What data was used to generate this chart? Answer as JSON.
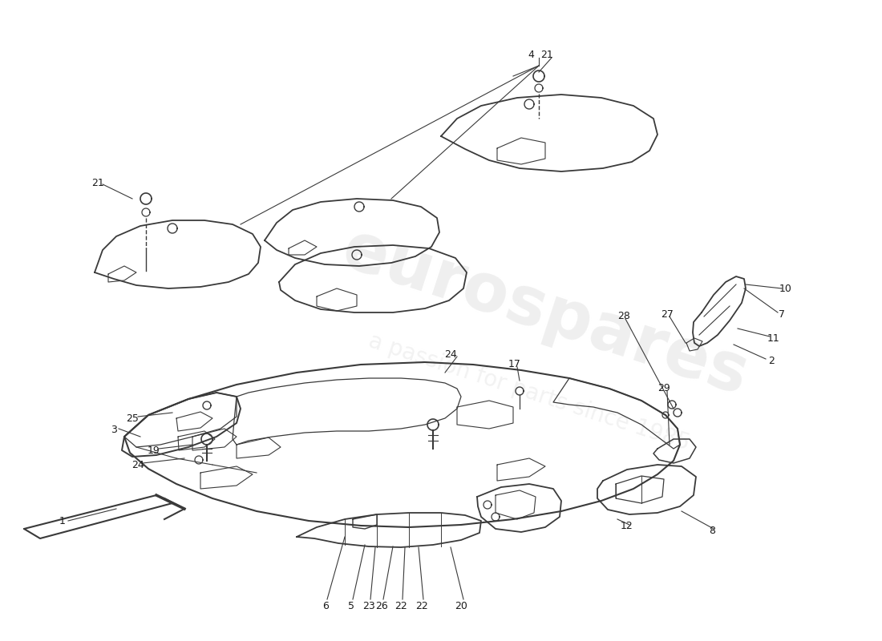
{
  "bg_color": "#ffffff",
  "line_color": "#3a3a3a",
  "text_color": "#1a1a1a",
  "lw_main": 1.2,
  "lw_thin": 0.7,
  "figsize": [
    11.0,
    8.0
  ],
  "dpi": 100
}
